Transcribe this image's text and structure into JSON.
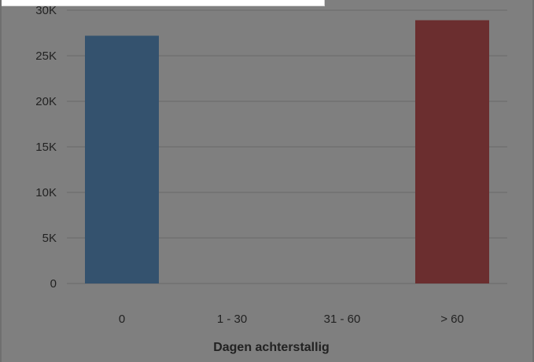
{
  "chart_data": {
    "type": "bar",
    "categories": [
      "0",
      "1 - 30",
      "31 - 60",
      "> 60"
    ],
    "values": [
      27200,
      0,
      0,
      28900
    ],
    "bar_colors": [
      "#34526e",
      "#34526e",
      "#34526e",
      "#6b2e2f"
    ],
    "ylim": [
      0,
      30000
    ],
    "y_ticks": [
      0,
      5000,
      10000,
      15000,
      20000,
      25000,
      30000
    ],
    "y_tick_labels": [
      "0",
      "5K",
      "10K",
      "15K",
      "20K",
      "25K",
      "30K"
    ],
    "xlabel": "Dagen achterstallig",
    "ylabel": "",
    "title": "",
    "grid": true,
    "gridline_color": "#6a6a6a",
    "background_color": "#7f7f7f"
  }
}
